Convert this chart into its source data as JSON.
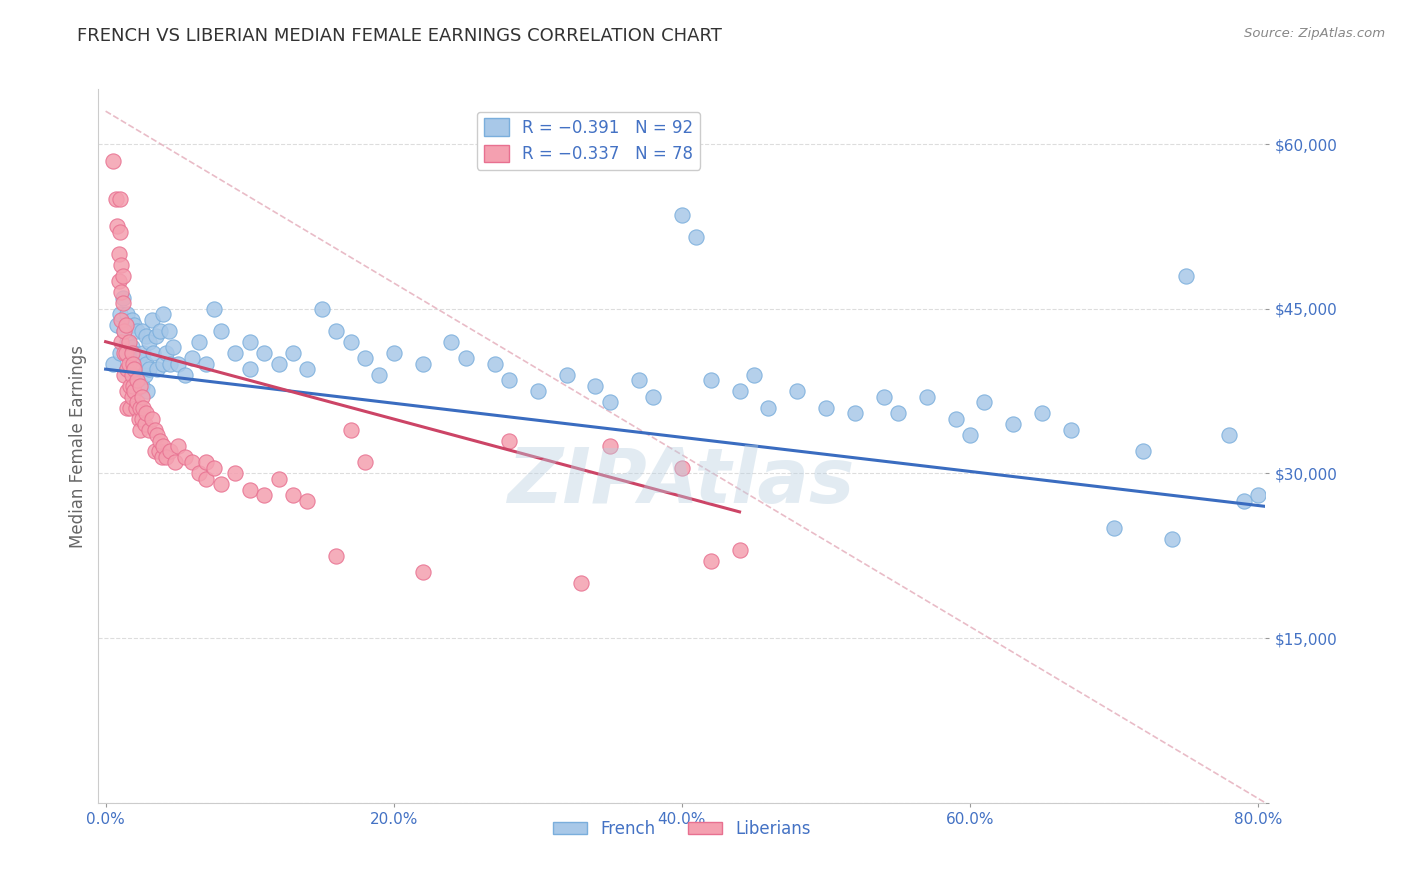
{
  "title": "FRENCH VS LIBERIAN MEDIAN FEMALE EARNINGS CORRELATION CHART",
  "source_text": "Source: ZipAtlas.com",
  "ylabel": "Median Female Earnings",
  "xlim": [
    -0.005,
    0.805
  ],
  "ylim": [
    0,
    65000
  ],
  "xtick_labels": [
    "0.0%",
    "20.0%",
    "40.0%",
    "60.0%",
    "80.0%"
  ],
  "xtick_values": [
    0.0,
    0.2,
    0.4,
    0.6,
    0.8
  ],
  "ytick_values": [
    0,
    15000,
    30000,
    45000,
    60000
  ],
  "ytick_labels": [
    "",
    "$15,000",
    "$30,000",
    "$45,000",
    "$60,000"
  ],
  "french_color": "#a8c8e8",
  "liberian_color": "#f4a0b0",
  "french_edge": "#7aaedc",
  "liberian_edge": "#e87090",
  "french_r": -0.391,
  "french_n": 92,
  "liberian_r": -0.337,
  "liberian_n": 78,
  "legend_label_french": "R = −0.391   N = 92",
  "legend_label_liberian": "R = −0.337   N = 78",
  "watermark": "ZIPAtlas",
  "watermark_color": "#b8cfe0",
  "title_color": "#333333",
  "source_color": "#888888",
  "ylabel_color": "#666666",
  "tick_label_color": "#4472c4",
  "legend_text_color": "#4472c4",
  "grid_color": "#dddddd",
  "background_color": "#ffffff",
  "french_trend_x": [
    0.0,
    0.805
  ],
  "french_trend_y": [
    39500,
    27000
  ],
  "liberian_trend_x": [
    0.0,
    0.44
  ],
  "liberian_trend_y": [
    42000,
    26500
  ],
  "diag_line_x": [
    0.0,
    0.805
  ],
  "diag_line_y": [
    63000,
    0
  ],
  "french_points": [
    [
      0.005,
      40000
    ],
    [
      0.008,
      43500
    ],
    [
      0.01,
      44500
    ],
    [
      0.01,
      41000
    ],
    [
      0.012,
      46000
    ],
    [
      0.013,
      43000
    ],
    [
      0.015,
      44500
    ],
    [
      0.015,
      42000
    ],
    [
      0.015,
      39500
    ],
    [
      0.018,
      44000
    ],
    [
      0.018,
      41500
    ],
    [
      0.019,
      39000
    ],
    [
      0.02,
      43500
    ],
    [
      0.02,
      41000
    ],
    [
      0.022,
      38500
    ],
    [
      0.022,
      43000
    ],
    [
      0.023,
      40500
    ],
    [
      0.025,
      38000
    ],
    [
      0.025,
      43000
    ],
    [
      0.026,
      41000
    ],
    [
      0.027,
      39000
    ],
    [
      0.028,
      42500
    ],
    [
      0.028,
      40000
    ],
    [
      0.029,
      37500
    ],
    [
      0.03,
      42000
    ],
    [
      0.03,
      39500
    ],
    [
      0.032,
      44000
    ],
    [
      0.033,
      41000
    ],
    [
      0.035,
      42500
    ],
    [
      0.036,
      39500
    ],
    [
      0.038,
      43000
    ],
    [
      0.04,
      40000
    ],
    [
      0.04,
      44500
    ],
    [
      0.042,
      41000
    ],
    [
      0.044,
      43000
    ],
    [
      0.045,
      40000
    ],
    [
      0.047,
      41500
    ],
    [
      0.05,
      40000
    ],
    [
      0.055,
      39000
    ],
    [
      0.06,
      40500
    ],
    [
      0.065,
      42000
    ],
    [
      0.07,
      40000
    ],
    [
      0.075,
      45000
    ],
    [
      0.08,
      43000
    ],
    [
      0.09,
      41000
    ],
    [
      0.1,
      42000
    ],
    [
      0.1,
      39500
    ],
    [
      0.11,
      41000
    ],
    [
      0.12,
      40000
    ],
    [
      0.13,
      41000
    ],
    [
      0.14,
      39500
    ],
    [
      0.15,
      45000
    ],
    [
      0.16,
      43000
    ],
    [
      0.17,
      42000
    ],
    [
      0.18,
      40500
    ],
    [
      0.19,
      39000
    ],
    [
      0.2,
      41000
    ],
    [
      0.22,
      40000
    ],
    [
      0.24,
      42000
    ],
    [
      0.25,
      40500
    ],
    [
      0.27,
      40000
    ],
    [
      0.28,
      38500
    ],
    [
      0.3,
      37500
    ],
    [
      0.32,
      39000
    ],
    [
      0.34,
      38000
    ],
    [
      0.35,
      36500
    ],
    [
      0.37,
      38500
    ],
    [
      0.38,
      37000
    ],
    [
      0.4,
      53500
    ],
    [
      0.41,
      51500
    ],
    [
      0.42,
      38500
    ],
    [
      0.44,
      37500
    ],
    [
      0.45,
      39000
    ],
    [
      0.46,
      36000
    ],
    [
      0.48,
      37500
    ],
    [
      0.5,
      36000
    ],
    [
      0.52,
      35500
    ],
    [
      0.54,
      37000
    ],
    [
      0.55,
      35500
    ],
    [
      0.57,
      37000
    ],
    [
      0.59,
      35000
    ],
    [
      0.6,
      33500
    ],
    [
      0.61,
      36500
    ],
    [
      0.63,
      34500
    ],
    [
      0.65,
      35500
    ],
    [
      0.67,
      34000
    ],
    [
      0.7,
      25000
    ],
    [
      0.72,
      32000
    ],
    [
      0.74,
      24000
    ],
    [
      0.75,
      48000
    ],
    [
      0.78,
      33500
    ],
    [
      0.79,
      27500
    ],
    [
      0.8,
      28000
    ]
  ],
  "liberian_points": [
    [
      0.005,
      58500
    ],
    [
      0.007,
      55000
    ],
    [
      0.008,
      52500
    ],
    [
      0.009,
      50000
    ],
    [
      0.009,
      47500
    ],
    [
      0.01,
      55000
    ],
    [
      0.01,
      52000
    ],
    [
      0.011,
      49000
    ],
    [
      0.011,
      46500
    ],
    [
      0.011,
      44000
    ],
    [
      0.011,
      42000
    ],
    [
      0.012,
      48000
    ],
    [
      0.012,
      45500
    ],
    [
      0.013,
      43000
    ],
    [
      0.013,
      41000
    ],
    [
      0.013,
      39000
    ],
    [
      0.014,
      43500
    ],
    [
      0.014,
      41000
    ],
    [
      0.015,
      39500
    ],
    [
      0.015,
      37500
    ],
    [
      0.015,
      36000
    ],
    [
      0.016,
      42000
    ],
    [
      0.016,
      40000
    ],
    [
      0.017,
      38000
    ],
    [
      0.017,
      36000
    ],
    [
      0.018,
      41000
    ],
    [
      0.018,
      39000
    ],
    [
      0.018,
      37000
    ],
    [
      0.019,
      40000
    ],
    [
      0.019,
      38000
    ],
    [
      0.02,
      39500
    ],
    [
      0.02,
      37500
    ],
    [
      0.021,
      36000
    ],
    [
      0.022,
      38500
    ],
    [
      0.022,
      36500
    ],
    [
      0.023,
      35000
    ],
    [
      0.024,
      38000
    ],
    [
      0.024,
      36000
    ],
    [
      0.024,
      34000
    ],
    [
      0.025,
      37000
    ],
    [
      0.025,
      35000
    ],
    [
      0.026,
      36000
    ],
    [
      0.027,
      34500
    ],
    [
      0.028,
      35500
    ],
    [
      0.03,
      34000
    ],
    [
      0.032,
      35000
    ],
    [
      0.034,
      34000
    ],
    [
      0.034,
      32000
    ],
    [
      0.036,
      33500
    ],
    [
      0.037,
      32000
    ],
    [
      0.038,
      33000
    ],
    [
      0.039,
      31500
    ],
    [
      0.04,
      32500
    ],
    [
      0.042,
      31500
    ],
    [
      0.045,
      32000
    ],
    [
      0.048,
      31000
    ],
    [
      0.05,
      32500
    ],
    [
      0.055,
      31500
    ],
    [
      0.06,
      31000
    ],
    [
      0.065,
      30000
    ],
    [
      0.07,
      31000
    ],
    [
      0.07,
      29500
    ],
    [
      0.075,
      30500
    ],
    [
      0.08,
      29000
    ],
    [
      0.09,
      30000
    ],
    [
      0.1,
      28500
    ],
    [
      0.11,
      28000
    ],
    [
      0.12,
      29500
    ],
    [
      0.13,
      28000
    ],
    [
      0.14,
      27500
    ],
    [
      0.16,
      22500
    ],
    [
      0.17,
      34000
    ],
    [
      0.18,
      31000
    ],
    [
      0.22,
      21000
    ],
    [
      0.28,
      33000
    ],
    [
      0.33,
      20000
    ],
    [
      0.35,
      32500
    ],
    [
      0.4,
      30500
    ],
    [
      0.42,
      22000
    ],
    [
      0.44,
      23000
    ]
  ]
}
